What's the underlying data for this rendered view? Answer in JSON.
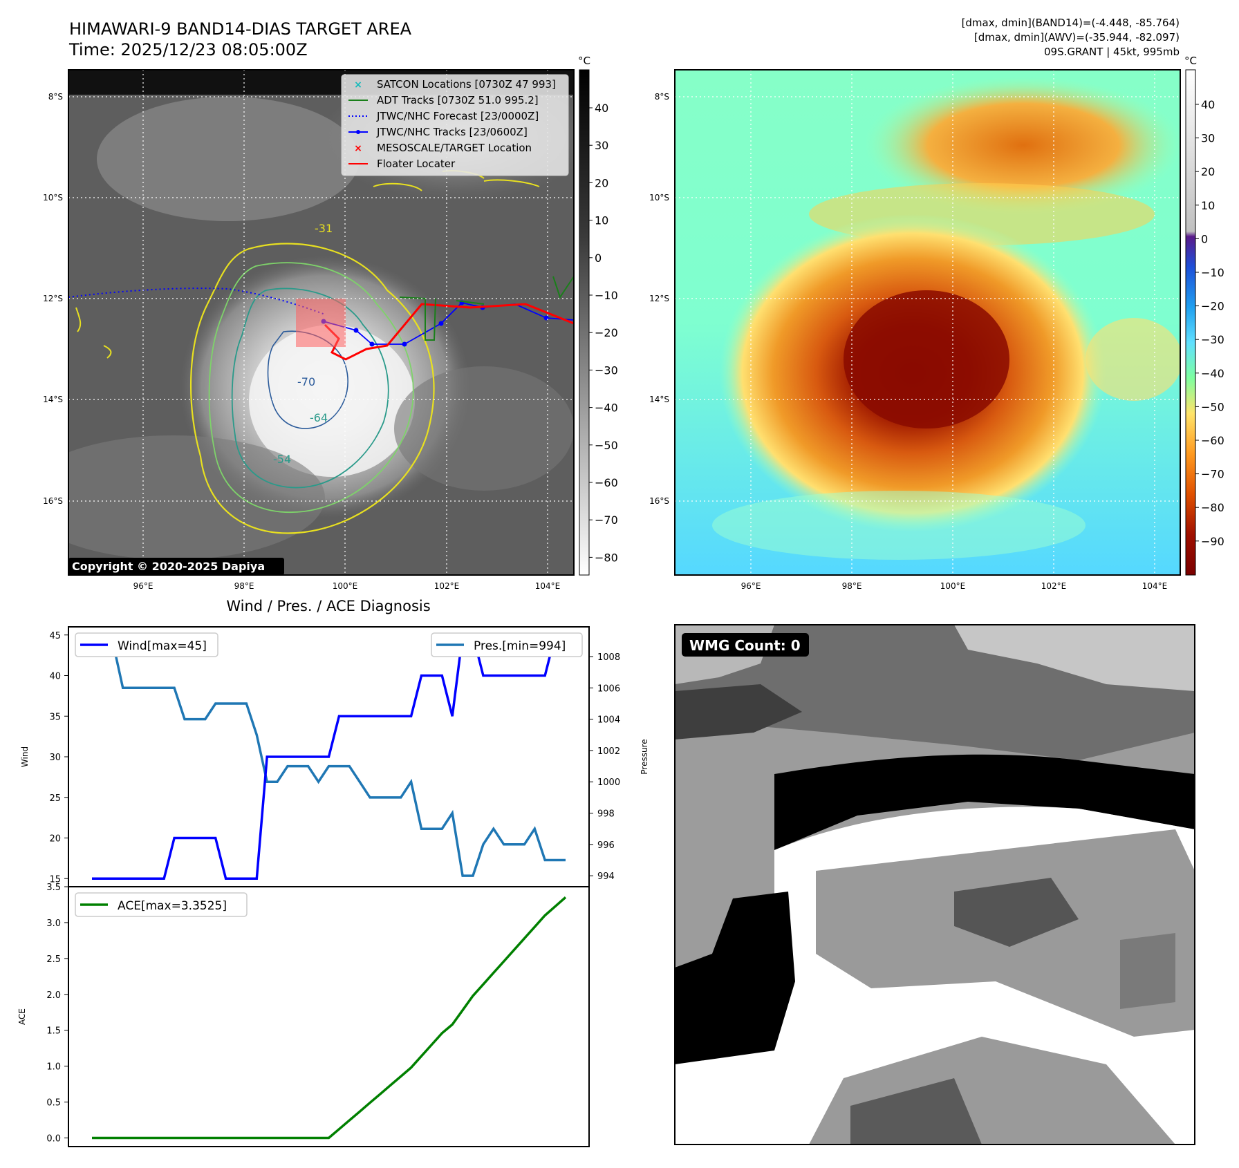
{
  "header": {
    "title_line1": "HIMAWARI-9 BAND14-DIAS TARGET AREA",
    "title_line2": "Time: 2025/12/23 08:05:00Z",
    "info_line1": "[dmax, dmin](BAND14)=(-4.448, -85.764)",
    "info_line2": "[dmax, dmin](AWV)=(-35.944, -82.097)",
    "info_line3": "09S.GRANT | 45kt, 995mb"
  },
  "map_axes": {
    "lat_labels": [
      "8°S",
      "10°S",
      "12°S",
      "14°S",
      "16°S"
    ],
    "lon_labels": [
      "96°E",
      "98°E",
      "100°E",
      "102°E",
      "104°E"
    ]
  },
  "ir_panel": {
    "copyright": "Copyright © 2020-2025 Dapiya",
    "colorbar_unit": "°C",
    "colorbar_ticks": [
      "40",
      "30",
      "20",
      "10",
      "0",
      "−10",
      "−20",
      "−30",
      "−40",
      "−50",
      "−60",
      "−70",
      "−80"
    ],
    "legend": [
      {
        "label": "SATCON Locations [0730Z 47 993]",
        "color": "#11bbbb",
        "marker": "x"
      },
      {
        "label": "ADT Tracks [0730Z 51.0 995.2]",
        "color": "#1a7f1a",
        "marker": "line"
      },
      {
        "label": "JTWC/NHC Forecast [23/0000Z]",
        "color": "#0000ff",
        "marker": "dotted"
      },
      {
        "label": "JTWC/NHC Tracks [23/0600Z]",
        "color": "#0000ff",
        "marker": "line-dot"
      },
      {
        "label": "MESOSCALE/TARGET Location",
        "color": "#ff0000",
        "marker": "x"
      },
      {
        "label": "Floater Locater",
        "color": "#ff0000",
        "marker": "line"
      }
    ],
    "contour_labels": [
      "-31",
      "-54",
      "-64",
      "-70"
    ]
  },
  "awv_panel": {
    "colorbar_unit": "°C",
    "colorbar_ticks": [
      "40",
      "30",
      "20",
      "10",
      "0",
      "−10",
      "−20",
      "−30",
      "−40",
      "−50",
      "−60",
      "−70",
      "−80",
      "−90"
    ]
  },
  "wmg_panel": {
    "badge": "WMG Count: 0"
  },
  "chart_data": [
    {
      "type": "line",
      "title": "Wind / Pres. / ACE Diagnosis",
      "ylabel": "Wind",
      "ylim": [
        14,
        46
      ],
      "yticks": [
        15,
        20,
        25,
        30,
        35,
        40,
        45
      ],
      "series": [
        {
          "name": "Wind[max=45]",
          "color": "#0000ff",
          "values": [
            15,
            15,
            15,
            15,
            15,
            15,
            15,
            15,
            20,
            20,
            20,
            20,
            20,
            15,
            15,
            15,
            15,
            30,
            30,
            30,
            30,
            30,
            30,
            30,
            35,
            35,
            35,
            35,
            35,
            35,
            35,
            35,
            40,
            40,
            40,
            35,
            45,
            45,
            40,
            40,
            40,
            40,
            40,
            40,
            40,
            45,
            45
          ]
        }
      ]
    },
    {
      "type": "line",
      "ylabel": "Pressure",
      "ylim": [
        993.3,
        1009.9
      ],
      "yticks": [
        994,
        996,
        998,
        1000,
        1002,
        1004,
        1006,
        1008
      ],
      "series": [
        {
          "name": "Pres.[min=994]",
          "color": "#1f77b4",
          "values": [
            1009,
            1009,
            1009,
            1006,
            1006,
            1006,
            1006,
            1006,
            1006,
            1004,
            1004,
            1004,
            1005,
            1005,
            1005,
            1005,
            1003,
            1000,
            1000,
            1001,
            1001,
            1001,
            1000,
            1001,
            1001,
            1001,
            1000,
            999,
            999,
            999,
            999,
            1000,
            997,
            997,
            997,
            998,
            994,
            994,
            996,
            997,
            996,
            996,
            996,
            997,
            995,
            995,
            995
          ]
        }
      ]
    },
    {
      "type": "line",
      "ylabel": "ACE",
      "ylim": [
        -0.12,
        3.5
      ],
      "yticks": [
        0.0,
        0.5,
        1.0,
        1.5,
        2.0,
        2.5,
        3.0,
        3.5
      ],
      "series": [
        {
          "name": "ACE[max=3.3525]",
          "color": "#008000",
          "values": [
            0,
            0,
            0,
            0,
            0,
            0,
            0,
            0,
            0,
            0,
            0,
            0,
            0,
            0,
            0,
            0,
            0,
            0,
            0,
            0,
            0,
            0,
            0,
            0,
            0.1225,
            0.245,
            0.3675,
            0.49,
            0.6125,
            0.735,
            0.8575,
            0.98,
            1.14,
            1.3,
            1.46,
            1.58,
            1.78,
            1.98,
            2.14,
            2.3,
            2.46,
            2.62,
            2.78,
            2.94,
            3.1,
            3.2263,
            3.3525
          ]
        }
      ]
    }
  ]
}
